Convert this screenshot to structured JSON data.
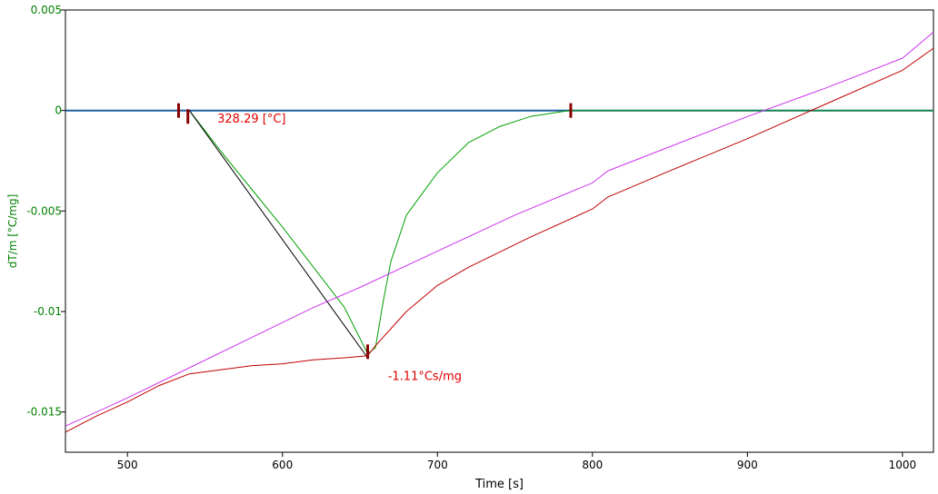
{
  "chart_data": {
    "type": "line",
    "xlabel": "Time [s]",
    "ylabel": "dT/m  [°C/mg]",
    "xlim": [
      460,
      1020
    ],
    "ylim": [
      -0.017,
      0.005
    ],
    "xticks": [
      500,
      600,
      700,
      800,
      900,
      1000
    ],
    "yticks": [
      0.005,
      0,
      -0.005,
      -0.01,
      -0.015
    ],
    "ytick_labels": [
      "0.005",
      "0",
      "-0.005",
      "-0.01",
      "-0.015"
    ],
    "grid": false,
    "legend": "none",
    "colors": {
      "baseline": "#1f5fa0",
      "green": "#00a000",
      "red": "#c00000",
      "magenta": "#cc33ee",
      "black": "#000000",
      "marker": "#8b0000",
      "annotation": "#e00000",
      "ytick": "#008000"
    },
    "series": [
      {
        "key": "baseline",
        "x": [
          460,
          1020
        ],
        "y": [
          0,
          0
        ]
      },
      {
        "key": "green",
        "x": [
          540,
          560,
          580,
          600,
          620,
          640,
          655,
          660,
          665,
          670,
          680,
          700,
          720,
          740,
          760,
          785,
          800,
          1020
        ],
        "y": [
          0,
          -0.002,
          -0.0039,
          -0.0058,
          -0.0078,
          -0.0098,
          -0.0121,
          -0.0118,
          -0.0095,
          -0.0075,
          -0.0052,
          -0.0031,
          -0.0016,
          -0.0008,
          -0.0003,
          0,
          0,
          0
        ]
      },
      {
        "key": "black",
        "x": [
          540,
          655
        ],
        "y": [
          0,
          -0.0123
        ]
      },
      {
        "key": "red",
        "x": [
          460,
          480,
          500,
          520,
          540,
          560,
          580,
          600,
          620,
          640,
          655,
          660,
          680,
          700,
          720,
          760,
          800,
          810,
          850,
          900,
          950,
          1000,
          1020
        ],
        "y": [
          -0.016,
          -0.0152,
          -0.0145,
          -0.0137,
          -0.0131,
          -0.0129,
          -0.0127,
          -0.0126,
          -0.0124,
          -0.0123,
          -0.0122,
          -0.0117,
          -0.01,
          -0.0087,
          -0.0078,
          -0.0063,
          -0.0049,
          -0.0043,
          -0.003,
          -0.0014,
          0.0003,
          0.002,
          0.0031
        ]
      },
      {
        "key": "magenta",
        "x": [
          460,
          500,
          540,
          580,
          620,
          650,
          700,
          750,
          800,
          810,
          850,
          900,
          950,
          1000,
          1020
        ],
        "y": [
          -0.0157,
          -0.0143,
          -0.0128,
          -0.0113,
          -0.0098,
          -0.0088,
          -0.007,
          -0.0052,
          -0.0036,
          -0.003,
          -0.0018,
          -0.0003,
          0.0011,
          0.0026,
          0.0039
        ]
      }
    ],
    "markers": [
      {
        "x": 533,
        "y": 0
      },
      {
        "x": 539,
        "y": -0.0003
      },
      {
        "x": 655,
        "y": -0.012
      },
      {
        "x": 786,
        "y": 0
      }
    ],
    "annotations": [
      {
        "text": "328.29 [°C]",
        "x": 558,
        "y": -0.0006
      },
      {
        "text": "-1.11°Cs/mg",
        "x": 668,
        "y": -0.0134
      }
    ]
  }
}
